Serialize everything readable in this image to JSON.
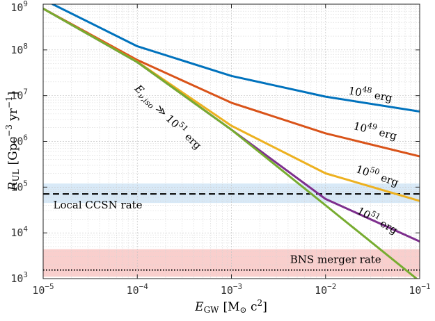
{
  "chart_data": {
    "type": "line",
    "xscale": "log",
    "yscale": "log",
    "xlim": [
      1e-05,
      0.1
    ],
    "ylim": [
      1000,
      1000000000
    ],
    "grid": true,
    "xlabel": {
      "main": "E",
      "sub": "GW",
      "units": "[M",
      "sun": "⊙",
      "units2": " c",
      "sup": "2",
      "close": "]"
    },
    "ylabel": {
      "main": "R",
      "sub": "UL",
      "units": "[Gpc",
      "sup1": "−3",
      "mid": " yr",
      "sup2": "−1",
      "close": "]"
    },
    "x_ticks": [
      {
        "value": 1e-05,
        "base": "10",
        "exp": "−5"
      },
      {
        "value": 0.0001,
        "base": "10",
        "exp": "−4"
      },
      {
        "value": 0.001,
        "base": "10",
        "exp": "−3"
      },
      {
        "value": 0.01,
        "base": "10",
        "exp": "−2"
      },
      {
        "value": 0.1,
        "base": "10",
        "exp": "−1"
      }
    ],
    "y_ticks": [
      {
        "value": 1000,
        "base": "10",
        "exp": "3"
      },
      {
        "value": 10000,
        "base": "10",
        "exp": "4"
      },
      {
        "value": 100000,
        "base": "10",
        "exp": "5"
      },
      {
        "value": 1000000,
        "base": "10",
        "exp": "6"
      },
      {
        "value": 10000000,
        "base": "10",
        "exp": "7"
      },
      {
        "value": 100000000,
        "base": "10",
        "exp": "8"
      },
      {
        "value": 1000000000,
        "base": "10",
        "exp": "9"
      }
    ],
    "series": [
      {
        "name": "10^48 erg",
        "color": "#0072bd",
        "x": [
          1.26e-05,
          0.0001,
          0.001,
          0.01,
          0.1
        ],
        "y": [
          1000000000,
          120000000,
          27000000,
          9500000,
          4500000
        ]
      },
      {
        "name": "10^49 erg",
        "color": "#d95319",
        "x": [
          1e-05,
          0.0001,
          0.001,
          0.01,
          0.1
        ],
        "y": [
          800000000,
          60000000,
          7000000,
          1500000,
          470000
        ]
      },
      {
        "name": "10^50 erg",
        "color": "#edb120",
        "x": [
          1e-05,
          0.0001,
          0.001,
          0.01,
          0.1
        ],
        "y": [
          800000000,
          55000000,
          2200000,
          200000,
          50000
        ]
      },
      {
        "name": "10^51 erg",
        "color": "#7e2f8e",
        "x": [
          1e-05,
          0.0001,
          0.001,
          0.01,
          0.1
        ],
        "y": [
          800000000,
          54000000,
          1800000,
          55000,
          6500
        ]
      },
      {
        "name": "E_ν,iso ≫ 10^51 erg",
        "color": "#77ac30",
        "x": [
          1e-05,
          0.0001,
          0.001,
          0.01,
          0.1
        ],
        "y": [
          800000000,
          54000000,
          1800000,
          40000,
          880
        ]
      }
    ],
    "curve_labels": [
      {
        "series": 0,
        "base": "10",
        "exp": "48",
        "unit": " erg",
        "x": 0.0295,
        "y": 9000000,
        "angle": 10
      },
      {
        "series": 1,
        "base": "10",
        "exp": "49",
        "unit": " erg",
        "x": 0.033,
        "y": 1420000,
        "angle": 14
      },
      {
        "series": 2,
        "base": "10",
        "exp": "50",
        "unit": " erg",
        "x": 0.0345,
        "y": 150000,
        "angle": 19
      },
      {
        "series": 3,
        "base": "10",
        "exp": "51",
        "unit": " erg",
        "x": 0.034,
        "y": 16000,
        "angle": 29
      }
    ],
    "diagonal_label": {
      "pre": "E",
      "sub": "ν,iso",
      "mid": " ≫ 10",
      "sup": "51",
      "post": " erg",
      "x": 0.0002,
      "y": 3000000,
      "angle": 44
    },
    "bands": [
      {
        "name": "Local CCSN rate",
        "color": "#d8e9f7",
        "y_low": 45000,
        "y_high": 120000,
        "line_value": 71000,
        "line_style": "dashed",
        "label_x": 1.28e-05,
        "label_y": 34000
      },
      {
        "name": "BNS merger rate",
        "color": "#f9cfcd",
        "y_low": 1100,
        "y_high": 4400,
        "line_value": 1540,
        "line_style": "dotted",
        "label_x": 0.0042,
        "label_y": 2200
      }
    ]
  }
}
